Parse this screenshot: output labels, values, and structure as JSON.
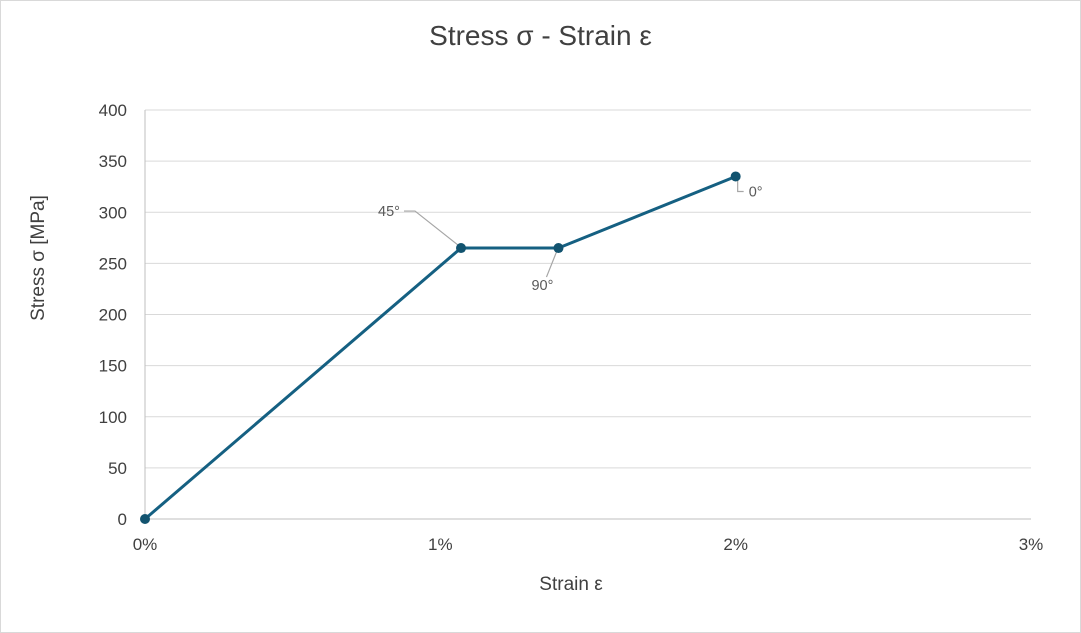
{
  "chart": {
    "title": "Stress σ - Strain ε"
  },
  "colors": {
    "series_line": "#156082",
    "marker_fill": "#12536f",
    "gridline": "#d9d9d9",
    "axis_line": "#bfbfbf",
    "leader_line": "#a6a6a6",
    "tick_text": "#404040",
    "label_text": "#595959",
    "frame_border": "#d9d9d9",
    "background": "#ffffff"
  },
  "chart_data": {
    "type": "line",
    "title": "Stress σ - Strain ε",
    "xlabel": "Strain ε",
    "ylabel": "Stress σ [MPa]",
    "xlim": [
      0,
      3
    ],
    "ylim": [
      0,
      400
    ],
    "x_unit": "percent",
    "x_tick_values": [
      0,
      1,
      2,
      3
    ],
    "x_tick_labels": [
      "0%",
      "1%",
      "2%",
      "3%"
    ],
    "y_tick_values": [
      0,
      50,
      100,
      150,
      200,
      250,
      300,
      350,
      400
    ],
    "y_tick_labels": [
      "0",
      "50",
      "100",
      "150",
      "200",
      "250",
      "300",
      "350",
      "400"
    ],
    "grid": "horizontal-major-only",
    "legend": "none",
    "series": [
      {
        "x": [
          0,
          1.07,
          1.4,
          2.0
        ],
        "y": [
          0,
          265,
          265,
          335
        ],
        "point_labels": [
          "",
          "45°",
          "90°",
          "0°"
        ]
      }
    ]
  }
}
